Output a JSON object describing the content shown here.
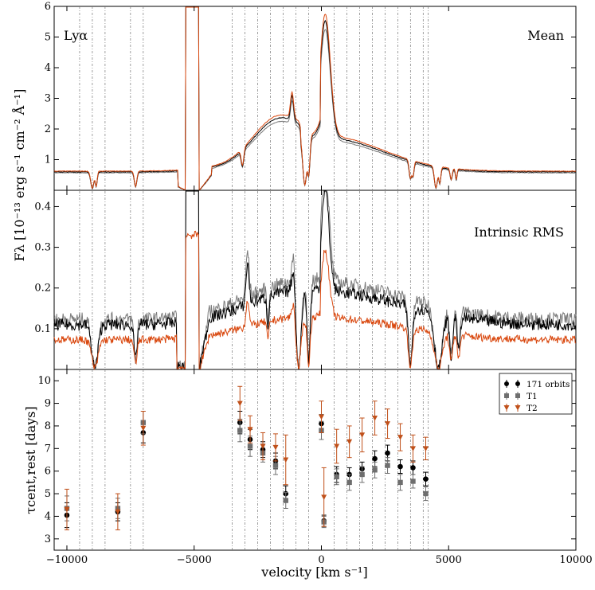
{
  "chart_data": [
    {
      "type": "line",
      "panel": "top",
      "annotation_left": "Lyα",
      "annotation_right": "Mean",
      "xlim": [
        -10500,
        10000
      ],
      "ylim": [
        0,
        6
      ],
      "yticks": [
        "1",
        "2",
        "3",
        "4",
        "5",
        "6"
      ],
      "series": [
        {
          "name": "171 orbits",
          "color": "#000000"
        },
        {
          "name": "T1",
          "color": "#7a7a7a"
        },
        {
          "name": "T2",
          "color": "#d9480f"
        }
      ]
    },
    {
      "type": "line",
      "panel": "middle",
      "annotation_right": "Intrinsic RMS",
      "xlim": [
        -10500,
        10000
      ],
      "ylim": [
        0,
        0.44
      ],
      "yticks": [
        "0.1",
        "0.2",
        "0.3",
        "0.4"
      ],
      "series": [
        {
          "name": "171 orbits",
          "color": "#000000"
        },
        {
          "name": "T1",
          "color": "#7a7a7a"
        },
        {
          "name": "T2",
          "color": "#d9480f"
        }
      ]
    },
    {
      "type": "scatter",
      "panel": "bottom",
      "xlim": [
        -10500,
        10000
      ],
      "ylim": [
        2.5,
        10.5
      ],
      "yticks": [
        "3",
        "4",
        "5",
        "6",
        "7",
        "8",
        "9",
        "10"
      ],
      "xticks": [
        "−10000",
        "−5000",
        "0",
        "5000",
        "10000"
      ],
      "x": [
        -10000,
        -8000,
        -7000,
        -3200,
        -2800,
        -2300,
        -1800,
        -1400,
        0,
        100,
        600,
        1100,
        1600,
        2100,
        2600,
        3100,
        3600,
        4100
      ],
      "series": [
        {
          "name": "171 orbits",
          "color": "#000000",
          "values": [
            4.05,
            4.2,
            7.7,
            8.15,
            7.4,
            6.95,
            6.45,
            5.0,
            8.1,
            3.8,
            5.85,
            5.85,
            6.1,
            6.55,
            6.8,
            6.2,
            6.15,
            5.65
          ]
        },
        {
          "name": "T1",
          "color": "#6e6e6e",
          "values": [
            4.35,
            4.35,
            8.15,
            7.8,
            7.1,
            6.8,
            6.25,
            4.7,
            7.8,
            3.75,
            5.75,
            5.5,
            5.85,
            6.05,
            6.25,
            5.5,
            5.55,
            5.0
          ]
        },
        {
          "name": "T2",
          "color": "#c0501a",
          "values": [
            4.3,
            4.2,
            7.9,
            9.0,
            7.85,
            7.1,
            7.05,
            6.5,
            8.4,
            4.85,
            7.1,
            7.3,
            7.6,
            8.35,
            8.1,
            7.5,
            7.0,
            7.0
          ]
        }
      ],
      "errors": {
        "171 orbits": [
          0.55,
          0.4,
          0.45,
          0.5,
          0.45,
          0.35,
          0.35,
          0.35,
          0.4,
          0.25,
          0.35,
          0.3,
          0.3,
          0.35,
          0.35,
          0.3,
          0.3,
          0.3
        ],
        "T1": [
          0.55,
          0.45,
          0.5,
          0.5,
          0.45,
          0.4,
          0.4,
          0.35,
          0.4,
          0.25,
          0.35,
          0.35,
          0.35,
          0.35,
          0.35,
          0.35,
          0.3,
          0.3
        ],
        "T2": [
          0.9,
          0.8,
          0.75,
          0.75,
          0.6,
          0.6,
          0.6,
          1.1,
          0.7,
          1.3,
          0.75,
          0.7,
          0.75,
          0.75,
          0.65,
          0.6,
          0.6,
          0.5
        ]
      }
    }
  ],
  "labels": {
    "shared_ylabel": "F_λ [10^−13 erg s^−1 cm^−2 Å^−1]",
    "shared_ylabel_display": "Fλ [10⁻¹³ erg s⁻¹ cm⁻² Å⁻¹]",
    "bottom_ylabel": "τcent,rest [days]",
    "xlabel": "velocity [km s⁻¹]"
  },
  "bin_edges": [
    -9500,
    -9000,
    -8500,
    -7500,
    -7000,
    -3500,
    -3000,
    -2500,
    -2000,
    -1500,
    -1000,
    -500,
    500,
    1000,
    1500,
    2000,
    2500,
    3000,
    3500,
    4000,
    4200
  ]
}
